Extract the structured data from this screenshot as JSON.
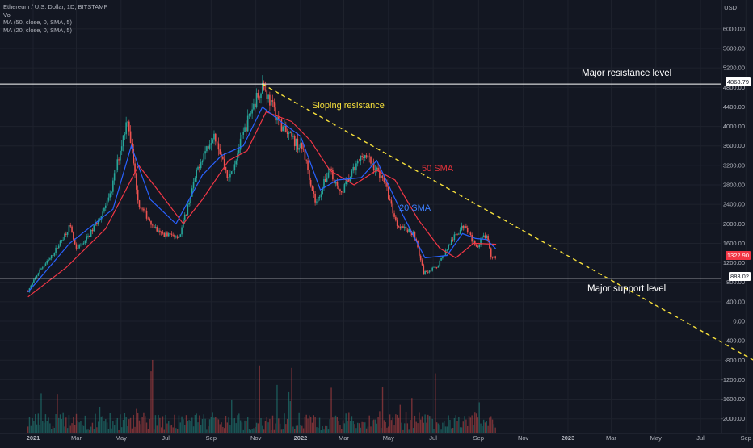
{
  "legend": {
    "symbol": "Ethereum / U.S. Dollar, 1D, BITSTAMP",
    "vol": "Vol",
    "ma50": "MA (50, close, 0, SMA, 5)",
    "ma20": "MA (20, close, 0, SMA, 5)"
  },
  "annotations": {
    "major_resistance": "Major resistance level",
    "sloping_resistance": "Sloping resistance",
    "sma50": "50 SMA",
    "sma20": "20 SMA",
    "major_support": "Major support level"
  },
  "price_tags": {
    "resistance": "4868.79",
    "current": "1322.90",
    "support": "883.02"
  },
  "colors": {
    "background": "#131722",
    "up_candle": "#26a69a",
    "down_candle": "#ef5350",
    "sma50": "#f23645",
    "sma20": "#2962ff",
    "sloping_line": "#f7e03b",
    "horizontal_lines": "#ffffff"
  },
  "chart_data": {
    "type": "candlestick",
    "unit": "USD",
    "y_ticks": [
      "6000.00",
      "5600.00",
      "5200.00",
      "4800.00",
      "4400.00",
      "4000.00",
      "3600.00",
      "3200.00",
      "2800.00",
      "2400.00",
      "2000.00",
      "1600.00",
      "1200.00",
      "800.00",
      "400.00",
      "0.00",
      "-400.00",
      "-800.00",
      "-1200.00",
      "-1600.00",
      "-2000.00"
    ],
    "x_ticks": [
      "2021",
      "Mar",
      "May",
      "Jul",
      "Sep",
      "Nov",
      "2022",
      "Mar",
      "May",
      "Jul",
      "Sep",
      "Nov",
      "2023",
      "Mar",
      "May",
      "Jul",
      "Sep"
    ],
    "price_path": [
      [
        "2020-12-25",
        620
      ],
      [
        "2021-01-10",
        1050
      ],
      [
        "2021-01-25",
        1300
      ],
      [
        "2021-02-20",
        1950
      ],
      [
        "2021-03-01",
        1450
      ],
      [
        "2021-03-20",
        1800
      ],
      [
        "2021-04-15",
        2500
      ],
      [
        "2021-05-10",
        4200
      ],
      [
        "2021-05-25",
        2400
      ],
      [
        "2021-06-22",
        1800
      ],
      [
        "2021-07-20",
        1750
      ],
      [
        "2021-08-15",
        3200
      ],
      [
        "2021-09-05",
        3900
      ],
      [
        "2021-09-25",
        2900
      ],
      [
        "2021-10-25",
        4300
      ],
      [
        "2021-11-10",
        4868
      ],
      [
        "2021-11-28",
        4250
      ],
      [
        "2021-12-10",
        3900
      ],
      [
        "2022-01-05",
        3500
      ],
      [
        "2022-01-22",
        2400
      ],
      [
        "2022-02-10",
        3150
      ],
      [
        "2022-02-24",
        2600
      ],
      [
        "2022-03-28",
        3450
      ],
      [
        "2022-04-25",
        2900
      ],
      [
        "2022-05-12",
        2000
      ],
      [
        "2022-06-05",
        1800
      ],
      [
        "2022-06-18",
        1000
      ],
      [
        "2022-07-05",
        1100
      ],
      [
        "2022-07-28",
        1700
      ],
      [
        "2022-08-14",
        2000
      ],
      [
        "2022-08-28",
        1500
      ],
      [
        "2022-09-08",
        1750
      ],
      [
        "2022-09-13",
        1700
      ],
      [
        "2022-09-18",
        1320
      ],
      [
        "2022-09-25",
        1322.9
      ]
    ],
    "sma50_path": [
      [
        "2020-12-25",
        500
      ],
      [
        "2021-02-15",
        1100
      ],
      [
        "2021-04-10",
        1900
      ],
      [
        "2021-05-25",
        3200
      ],
      [
        "2021-06-25",
        2600
      ],
      [
        "2021-07-25",
        2000
      ],
      [
        "2021-08-20",
        2500
      ],
      [
        "2021-09-25",
        3300
      ],
      [
        "2021-10-20",
        3500
      ],
      [
        "2021-11-15",
        4300
      ],
      [
        "2021-12-20",
        4100
      ],
      [
        "2022-01-15",
        3700
      ],
      [
        "2022-02-10",
        3100
      ],
      [
        "2022-03-15",
        2800
      ],
      [
        "2022-04-15",
        3100
      ],
      [
        "2022-05-10",
        2900
      ],
      [
        "2022-06-10",
        2100
      ],
      [
        "2022-07-10",
        1500
      ],
      [
        "2022-08-01",
        1300
      ],
      [
        "2022-08-25",
        1600
      ],
      [
        "2022-09-25",
        1580
      ]
    ],
    "sma20_path": [
      [
        "2020-12-25",
        600
      ],
      [
        "2021-02-20",
        1600
      ],
      [
        "2021-04-20",
        2300
      ],
      [
        "2021-05-15",
        3600
      ],
      [
        "2021-06-10",
        2500
      ],
      [
        "2021-07-15",
        2000
      ],
      [
        "2021-08-20",
        3000
      ],
      [
        "2021-09-15",
        3400
      ],
      [
        "2021-10-15",
        3600
      ],
      [
        "2021-11-10",
        4400
      ],
      [
        "2021-12-05",
        4100
      ],
      [
        "2022-01-01",
        3800
      ],
      [
        "2022-01-28",
        2700
      ],
      [
        "2022-02-20",
        2900
      ],
      [
        "2022-03-25",
        2950
      ],
      [
        "2022-04-15",
        3300
      ],
      [
        "2022-05-20",
        2200
      ],
      [
        "2022-06-20",
        1300
      ],
      [
        "2022-07-20",
        1350
      ],
      [
        "2022-08-10",
        1800
      ],
      [
        "2022-08-28",
        1700
      ],
      [
        "2022-09-12",
        1680
      ],
      [
        "2022-09-25",
        1480
      ]
    ],
    "resistance_level": 4868.79,
    "support_level": 883.02,
    "sloping_resistance": [
      [
        "2021-11-10",
        4868
      ],
      [
        "2023-12-15",
        -1600
      ]
    ]
  }
}
